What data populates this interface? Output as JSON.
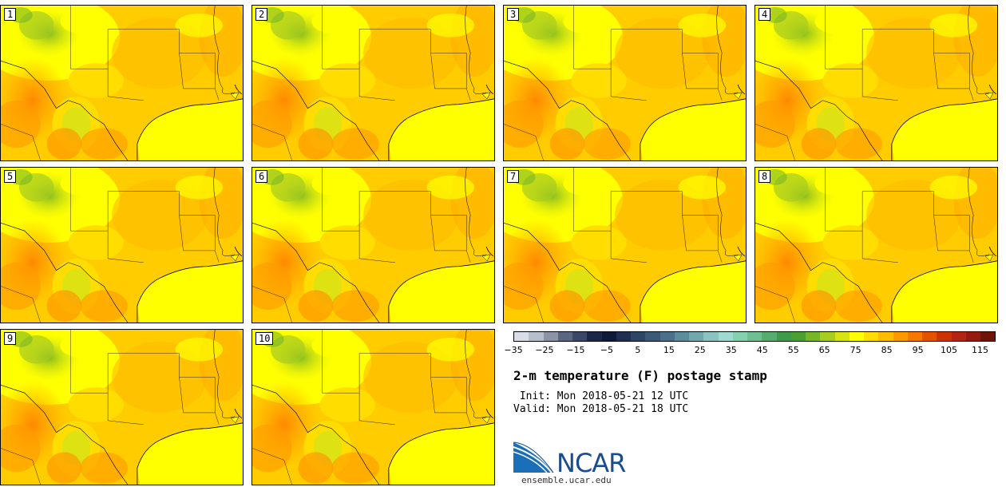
{
  "figure": {
    "title": "2-m temperature (F) postage stamp",
    "init_label": " Init: Mon 2018-05-21 12 UTC",
    "valid_label": "Valid: Mon 2018-05-21 18 UTC",
    "logo_text": "NCAR",
    "url": "ensemble.ucar.edu"
  },
  "panels": [
    "1",
    "2",
    "3",
    "4",
    "5",
    "6",
    "7",
    "8",
    "9",
    "10"
  ],
  "colorbar": {
    "colors": [
      "#d8dde6",
      "#b7bfcc",
      "#8a94a6",
      "#5b6781",
      "#3a4766",
      "#1b2748",
      "#0f1a38",
      "#1f2e52",
      "#2f4566",
      "#3c5a78",
      "#4a7189",
      "#5c8d9c",
      "#71a7ad",
      "#8bc2c2",
      "#9ed9d2",
      "#86cfb0",
      "#6ebf91",
      "#55ad6f",
      "#3f9a4c",
      "#4ca032",
      "#78b628",
      "#a8cc1f",
      "#d6e417",
      "#ffff00",
      "#ffdd00",
      "#ffbb00",
      "#ff9900",
      "#f77700",
      "#e65100",
      "#cc3300",
      "#b42412",
      "#951a10",
      "#701309"
    ],
    "ticks": [
      "−35",
      "−25",
      "−15",
      "−5",
      "5",
      "15",
      "25",
      "35",
      "45",
      "55",
      "65",
      "75",
      "85",
      "95",
      "105",
      "115"
    ]
  }
}
